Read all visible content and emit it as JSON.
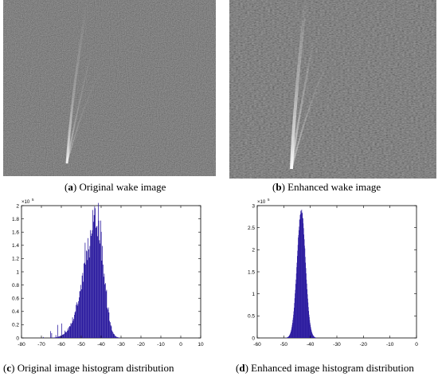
{
  "captions": {
    "a": {
      "tag": "a",
      "text": "Original wake image"
    },
    "b": {
      "tag": "b",
      "text": "Enhanced wake image"
    },
    "c": {
      "tag": "c",
      "text": "Original image histogram distribution"
    },
    "d": {
      "tag": "d",
      "text": "Enhanced image histogram distribution"
    }
  },
  "colors": {
    "bar": "#2a1a9e",
    "axis": "#000000",
    "image_dark": "#2b2b2b"
  },
  "chart_data": [
    {
      "type": "bar",
      "panel": "c",
      "title": "",
      "xlabel": "",
      "ylabel": "",
      "exponent_label": "×10",
      "exponent_power": "5",
      "xlim": [
        -80,
        10
      ],
      "ylim": [
        0,
        2
      ],
      "xticks": [
        -80,
        -70,
        -60,
        -50,
        -40,
        -30,
        -20,
        -10,
        0,
        10
      ],
      "yticks": [
        0,
        0.2,
        0.4,
        0.6,
        0.8,
        1,
        1.2,
        1.4,
        1.6,
        1.8,
        2
      ],
      "ytick_labels": [
        "0",
        "0.2",
        "0.4",
        "0.6",
        "0.8",
        "1",
        "1.2",
        "1.4",
        "1.6",
        "1.8",
        "2"
      ],
      "distribution": {
        "peak_x": -42,
        "peak_y": 1.75,
        "left_sigma": 6.5,
        "right_sigma": 3.2
      }
    },
    {
      "type": "bar",
      "panel": "d",
      "title": "",
      "xlabel": "",
      "ylabel": "",
      "exponent_label": "×10",
      "exponent_power": "5",
      "xlim": [
        -60,
        0
      ],
      "ylim": [
        0,
        3
      ],
      "xticks": [
        -60,
        -50,
        -40,
        -30,
        -20,
        -10,
        0
      ],
      "yticks": [
        0,
        0.5,
        1,
        1.5,
        2,
        2.5,
        3
      ],
      "ytick_labels": [
        "0",
        "0.5",
        "1",
        "1.5",
        "2",
        "2.5",
        "3"
      ],
      "distribution": {
        "peak_x": -43.5,
        "peak_y": 2.9,
        "left_sigma": 1.6,
        "right_sigma": 1.6
      }
    }
  ]
}
